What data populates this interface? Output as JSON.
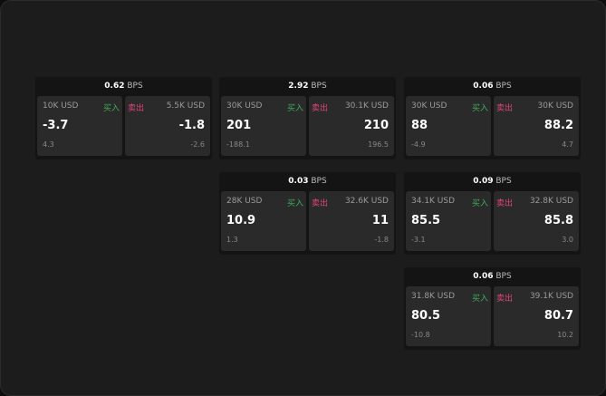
{
  "colors": {
    "buy": "#3fae5a",
    "sell": "#e0457b"
  },
  "unit": "BPS",
  "buy_label": "买入",
  "sell_label": "卖出",
  "panels": [
    {
      "spread": "0.62",
      "bid": {
        "size": "10K USD",
        "price": "-3.7",
        "change": "4.3"
      },
      "ask": {
        "size": "5.5K USD",
        "price": "-1.8",
        "change": "-2.6"
      }
    },
    {
      "spread": "2.92",
      "bid": {
        "size": "30K USD",
        "price": "201",
        "change": "-188.1"
      },
      "ask": {
        "size": "30.1K USD",
        "price": "210",
        "change": "196.5"
      }
    },
    {
      "spread": "0.06",
      "bid": {
        "size": "30K USD",
        "price": "88",
        "change": "-4.9"
      },
      "ask": {
        "size": "30K USD",
        "price": "88.2",
        "change": "4.7"
      }
    },
    {
      "spread": "0.03",
      "bid": {
        "size": "28K USD",
        "price": "10.9",
        "change": "1.3"
      },
      "ask": {
        "size": "32.6K USD",
        "price": "11",
        "change": "-1.8"
      }
    },
    {
      "spread": "0.09",
      "bid": {
        "size": "34.1K USD",
        "price": "85.5",
        "change": "-3.1"
      },
      "ask": {
        "size": "32.8K USD",
        "price": "85.8",
        "change": "3.0"
      }
    },
    {
      "spread": "0.06",
      "bid": {
        "size": "31.8K USD",
        "price": "80.5",
        "change": "-10.8"
      },
      "ask": {
        "size": "39.1K USD",
        "price": "80.7",
        "change": "10.2"
      }
    }
  ]
}
